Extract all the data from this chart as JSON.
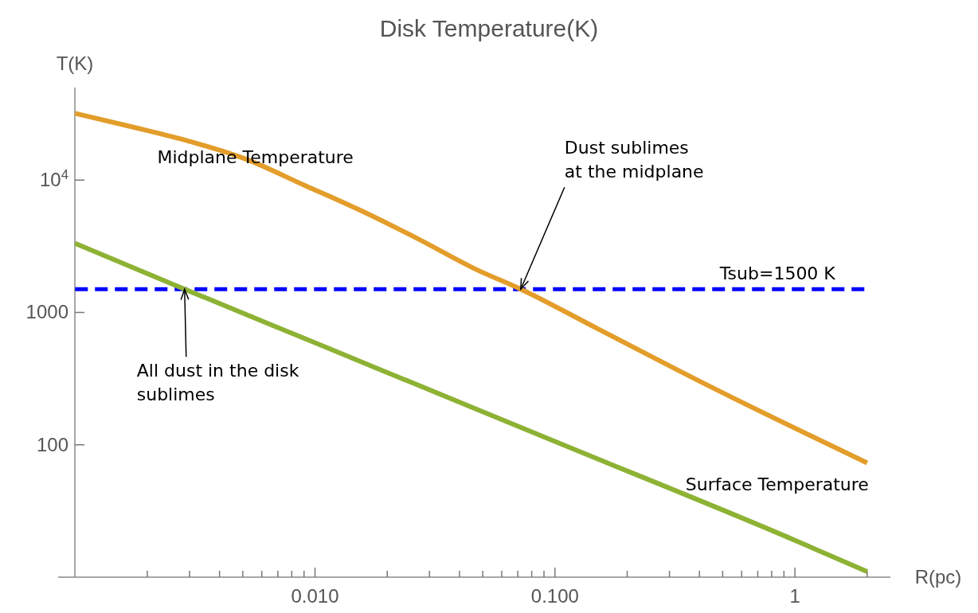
{
  "chart_data": {
    "type": "line",
    "title": "Disk Temperature(K)",
    "xlabel": "R(pc)",
    "ylabel": "T(K)",
    "log": "xy",
    "x": [
      0.001,
      0.00175,
      0.003,
      0.0052,
      0.009,
      0.0156,
      0.027,
      0.0465,
      0.072,
      0.15,
      0.41,
      2
    ],
    "series": [
      {
        "name": "Midplane Temperature",
        "color": "#e39d2a",
        "values": [
          31900,
          25100,
          19600,
          14300,
          9170,
          5860,
          3580,
          2130,
          1500,
          757,
          296,
          73
        ]
      },
      {
        "name": "Surface Temperature",
        "color": "#8db234",
        "x": [
          0.001,
          0.00286,
          0.01,
          0.1,
          1,
          2
        ],
        "values": [
          3330,
          1500,
          590,
          106,
          19,
          11
        ]
      }
    ],
    "xlim": [
      0.00085,
      2.5
    ],
    "ylim": [
      10,
      50000
    ],
    "xticks": [
      {
        "value": 0.002,
        "label": null
      },
      {
        "value": 0.003,
        "label": null
      },
      {
        "value": 0.004,
        "label": null
      },
      {
        "value": 0.005,
        "label": null
      },
      {
        "value": 0.006,
        "label": null
      },
      {
        "value": 0.007,
        "label": null
      },
      {
        "value": 0.008,
        "label": null
      },
      {
        "value": 0.009,
        "label": null
      },
      {
        "value": 0.01,
        "label": "0.010"
      },
      {
        "value": 0.02,
        "label": null
      },
      {
        "value": 0.03,
        "label": null
      },
      {
        "value": 0.04,
        "label": null
      },
      {
        "value": 0.05,
        "label": null
      },
      {
        "value": 0.06,
        "label": null
      },
      {
        "value": 0.07,
        "label": null
      },
      {
        "value": 0.08,
        "label": null
      },
      {
        "value": 0.09,
        "label": null
      },
      {
        "value": 0.1,
        "label": "0.100"
      },
      {
        "value": 0.2,
        "label": null
      },
      {
        "value": 0.3,
        "label": null
      },
      {
        "value": 0.4,
        "label": null
      },
      {
        "value": 0.5,
        "label": null
      },
      {
        "value": 0.6,
        "label": null
      },
      {
        "value": 0.7,
        "label": null
      },
      {
        "value": 0.8,
        "label": null
      },
      {
        "value": 0.9,
        "label": null
      },
      1,
      {
        "value": 2,
        "label": null
      }
    ],
    "yticks": [
      100,
      1000,
      {
        "value": 10000,
        "label": "10$^{4}$"
      }
    ],
    "ref_lines": [
      {
        "axis": "y",
        "value": 1500,
        "label": "Tsub=1500 K",
        "color": "#0000ff",
        "line_style": "dashed"
      }
    ],
    "annotations": [
      {
        "text": "Dust sublimes\nat the midplane",
        "x": 0.072,
        "y": 1500
      },
      {
        "text": "All dust in the disk\nsublimes",
        "x": 0.00286,
        "y": 1500
      }
    ],
    "grid": false,
    "marker": "none",
    "line_style": "solid"
  }
}
